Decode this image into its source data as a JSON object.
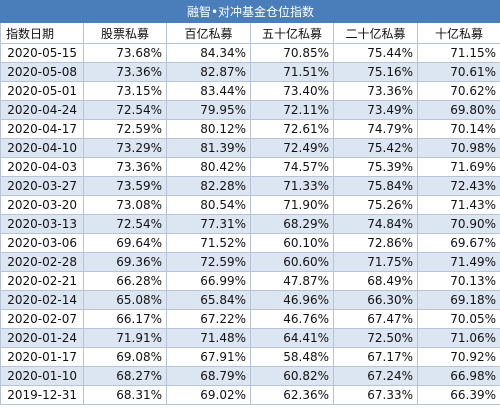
{
  "title": "融智•对冲基金仓位指数",
  "columns": [
    "指数日期",
    "股票私募",
    "百亿私募",
    "五十亿私募",
    "二十亿私募",
    "十亿私募"
  ],
  "rows": [
    [
      "2020-05-15",
      "73.68%",
      "84.34%",
      "70.85%",
      "75.44%",
      "71.15%"
    ],
    [
      "2020-05-08",
      "73.36%",
      "82.87%",
      "71.51%",
      "75.16%",
      "70.61%"
    ],
    [
      "2020-05-01",
      "73.15%",
      "83.44%",
      "73.40%",
      "73.36%",
      "70.62%"
    ],
    [
      "2020-04-24",
      "72.54%",
      "79.95%",
      "72.11%",
      "73.49%",
      "69.80%"
    ],
    [
      "2020-04-17",
      "72.59%",
      "80.12%",
      "72.61%",
      "74.79%",
      "70.14%"
    ],
    [
      "2020-04-10",
      "73.29%",
      "81.39%",
      "72.49%",
      "75.42%",
      "70.98%"
    ],
    [
      "2020-04-03",
      "73.36%",
      "80.42%",
      "74.57%",
      "75.39%",
      "71.69%"
    ],
    [
      "2020-03-27",
      "73.59%",
      "82.28%",
      "71.33%",
      "75.84%",
      "72.43%"
    ],
    [
      "2020-03-20",
      "73.08%",
      "80.54%",
      "71.90%",
      "75.26%",
      "71.43%"
    ],
    [
      "2020-03-13",
      "72.54%",
      "77.31%",
      "68.29%",
      "74.84%",
      "70.90%"
    ],
    [
      "2020-03-06",
      "69.64%",
      "71.52%",
      "60.10%",
      "72.86%",
      "69.67%"
    ],
    [
      "2020-02-28",
      "69.36%",
      "72.59%",
      "60.60%",
      "71.75%",
      "71.49%"
    ],
    [
      "2020-02-21",
      "66.28%",
      "66.99%",
      "47.87%",
      "68.49%",
      "70.13%"
    ],
    [
      "2020-02-14",
      "65.08%",
      "65.84%",
      "46.96%",
      "66.30%",
      "69.18%"
    ],
    [
      "2020-02-07",
      "66.17%",
      "67.22%",
      "46.76%",
      "67.47%",
      "70.05%"
    ],
    [
      "2020-01-24",
      "71.91%",
      "71.48%",
      "64.41%",
      "72.50%",
      "71.06%"
    ],
    [
      "2020-01-17",
      "69.08%",
      "67.91%",
      "58.48%",
      "67.17%",
      "70.92%"
    ],
    [
      "2020-01-10",
      "68.27%",
      "68.79%",
      "60.82%",
      "67.24%",
      "66.98%"
    ],
    [
      "2019-12-31",
      "68.31%",
      "69.02%",
      "62.36%",
      "67.33%",
      "66.39%"
    ]
  ]
}
